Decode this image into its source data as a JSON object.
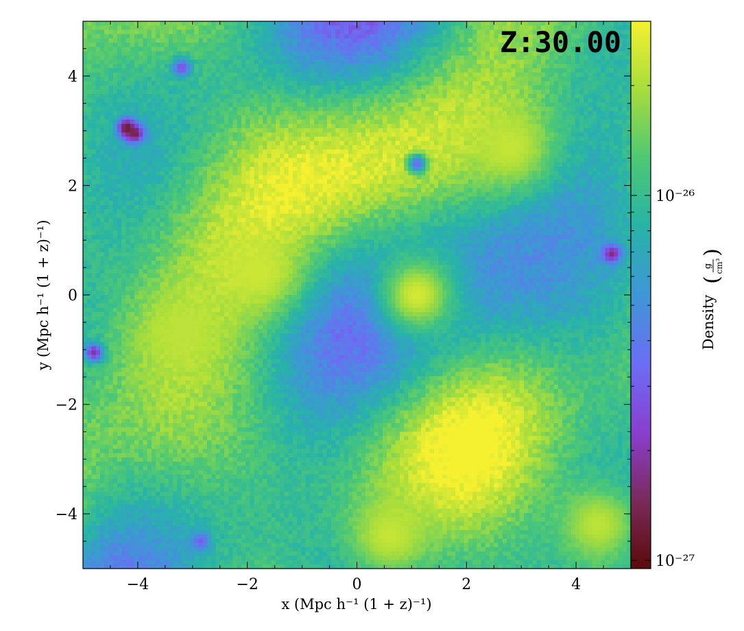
{
  "chart_data": {
    "type": "heatmap",
    "title": "",
    "annotation": "Z:30.00",
    "xlabel": "x  (Mpc h⁻¹ (1 + z)⁻¹)",
    "ylabel": "y  (Mpc h⁻¹ (1 + z)⁻¹)",
    "xlim": [
      -5,
      5
    ],
    "ylim": [
      -5,
      5
    ],
    "xticks": [
      -4,
      -2,
      0,
      2,
      4
    ],
    "xtick_labels": [
      "−4",
      "−2",
      "0",
      "2",
      "4"
    ],
    "yticks": [
      -4,
      -2,
      0,
      2,
      4
    ],
    "ytick_labels": [
      "−4",
      "−2",
      "0",
      "2",
      "4"
    ],
    "colorbar": {
      "label": "Density",
      "units_numerator": "g",
      "units_denominator": "cm³",
      "scale": "log",
      "range": [
        9.5e-28,
        3e-26
      ],
      "ticks": [
        1e-27,
        1e-26
      ],
      "tick_labels": [
        "10⁻²⁷",
        "10⁻²⁶"
      ],
      "colormap": [
        "#5c0a0a",
        "#7b2a5c",
        "#8a3fd0",
        "#6b6ef5",
        "#3f96d6",
        "#27b3a8",
        "#4ec874",
        "#a7dd3c",
        "#f5f030"
      ]
    },
    "grid_resolution": [
      128,
      128
    ],
    "density_stats": {
      "typical": 1.2e-26,
      "min": 1.05e-27,
      "max": 2.6e-26
    },
    "features": [
      {
        "kind": "void",
        "x": -4.2,
        "y": 3.05,
        "value": 1.1e-27
      },
      {
        "kind": "void",
        "x": -4.05,
        "y": 2.95,
        "value": 1.3e-27
      },
      {
        "kind": "void",
        "x": 4.65,
        "y": 0.75,
        "value": 1.6e-27
      },
      {
        "kind": "void",
        "x": -4.8,
        "y": -1.05,
        "value": 1.8e-27
      },
      {
        "kind": "void",
        "x": -2.85,
        "y": -4.5,
        "value": 3e-27
      },
      {
        "kind": "void",
        "x": -3.2,
        "y": 4.15,
        "value": 2.6e-27
      },
      {
        "kind": "void",
        "x": 1.1,
        "y": 2.4,
        "value": 3.2e-27
      },
      {
        "kind": "overdense",
        "x": 1.1,
        "y": 0.0,
        "value": 2.5e-26
      },
      {
        "kind": "overdense",
        "x": -1.8,
        "y": 0.4,
        "value": 2.4e-26
      },
      {
        "kind": "overdense",
        "x": 2.8,
        "y": 2.7,
        "value": 2.3e-26
      },
      {
        "kind": "overdense",
        "x": 0.6,
        "y": -4.4,
        "value": 2.3e-26
      },
      {
        "kind": "overdense",
        "x": 4.4,
        "y": -4.2,
        "value": 2.2e-26
      },
      {
        "kind": "overdense",
        "x": -3.2,
        "y": -0.7,
        "value": 2.2e-26
      }
    ]
  }
}
